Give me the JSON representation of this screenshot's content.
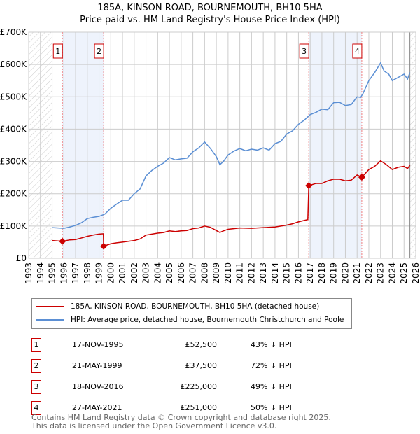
{
  "chart_data": {
    "type": "line",
    "title": "185A, KINSON ROAD, BOURNEMOUTH, BH10 5HA",
    "subtitle": "Price paid vs. HM Land Registry's House Price Index (HPI)",
    "xlim": [
      1993,
      2026
    ],
    "ylim": [
      0,
      700000
    ],
    "x_ticks": [
      "1993",
      "1994",
      "1995",
      "1996",
      "1997",
      "1998",
      "1999",
      "2000",
      "2001",
      "2002",
      "2003",
      "2004",
      "2005",
      "2006",
      "2007",
      "2008",
      "2009",
      "2010",
      "2011",
      "2012",
      "2013",
      "2014",
      "2015",
      "2016",
      "2017",
      "2018",
      "2019",
      "2020",
      "2021",
      "2022",
      "2023",
      "2024",
      "2025",
      "2026"
    ],
    "y_ticks": [
      {
        "v": 0,
        "label": "£0"
      },
      {
        "v": 100000,
        "label": "£100K"
      },
      {
        "v": 200000,
        "label": "£200K"
      },
      {
        "v": 300000,
        "label": "£300K"
      },
      {
        "v": 400000,
        "label": "£400K"
      },
      {
        "v": 500000,
        "label": "£500K"
      },
      {
        "v": 600000,
        "label": "£600K"
      },
      {
        "v": 700000,
        "label": "£700K"
      }
    ],
    "hatched_ranges": [
      [
        1993,
        1995
      ],
      [
        2025.5,
        2026
      ]
    ],
    "shaded_ranges": [
      [
        1995.88,
        1999.39
      ],
      [
        2016.88,
        2021.4
      ]
    ],
    "series": [
      {
        "name": "185A, KINSON ROAD, BOURNEMOUTH, BH10 5HA (detached house)",
        "color": "#cc0000",
        "points": [
          [
            1995,
            55
          ],
          [
            1995.88,
            52.5
          ],
          [
            1996.5,
            57
          ],
          [
            1997,
            58
          ],
          [
            1997.5,
            63
          ],
          [
            1998,
            68
          ],
          [
            1998.5,
            72
          ],
          [
            1999,
            75
          ],
          [
            1999.37,
            76
          ],
          [
            1999.39,
            37.5
          ],
          [
            2000,
            45
          ],
          [
            2000.5,
            48
          ],
          [
            2001,
            50
          ],
          [
            2002,
            55
          ],
          [
            2002.5,
            60
          ],
          [
            2003,
            72
          ],
          [
            2004,
            78
          ],
          [
            2004.5,
            80
          ],
          [
            2005,
            85
          ],
          [
            2005.5,
            83
          ],
          [
            2006,
            85
          ],
          [
            2006.5,
            86
          ],
          [
            2007,
            92
          ],
          [
            2007.5,
            94
          ],
          [
            2008,
            100
          ],
          [
            2008.5,
            96
          ],
          [
            2009,
            86
          ],
          [
            2009.3,
            80
          ],
          [
            2009.6,
            85
          ],
          [
            2010,
            90
          ],
          [
            2011,
            94
          ],
          [
            2012,
            93
          ],
          [
            2013,
            95
          ],
          [
            2014,
            97
          ],
          [
            2015,
            103
          ],
          [
            2015.5,
            107
          ],
          [
            2016,
            113
          ],
          [
            2016.8,
            120
          ],
          [
            2016.88,
            225
          ],
          [
            2017.5,
            232
          ],
          [
            2018,
            232
          ],
          [
            2018.5,
            240
          ],
          [
            2019,
            245
          ],
          [
            2019.5,
            245
          ],
          [
            2020,
            240
          ],
          [
            2020.5,
            242
          ],
          [
            2021,
            258
          ],
          [
            2021.4,
            251
          ],
          [
            2022,
            275
          ],
          [
            2022.5,
            285
          ],
          [
            2023,
            302
          ],
          [
            2023.5,
            290
          ],
          [
            2024,
            275
          ],
          [
            2024.5,
            282
          ],
          [
            2025,
            285
          ],
          [
            2025.3,
            278
          ],
          [
            2025.5,
            288
          ]
        ]
      },
      {
        "name": "HPI: Average price, detached house, Bournemouth Christchurch and Poole",
        "color": "#5b8fd4",
        "points": [
          [
            1995,
            95
          ],
          [
            1996,
            93
          ],
          [
            1996.5,
            97
          ],
          [
            1997,
            102
          ],
          [
            1997.5,
            110
          ],
          [
            1998,
            123
          ],
          [
            1998.5,
            127
          ],
          [
            1999,
            130
          ],
          [
            1999.5,
            137
          ],
          [
            2000,
            155
          ],
          [
            2000.5,
            168
          ],
          [
            2001,
            180
          ],
          [
            2001.5,
            180
          ],
          [
            2002,
            200
          ],
          [
            2002.5,
            215
          ],
          [
            2003,
            255
          ],
          [
            2003.5,
            272
          ],
          [
            2004,
            285
          ],
          [
            2004.5,
            295
          ],
          [
            2005,
            312
          ],
          [
            2005.5,
            305
          ],
          [
            2006,
            308
          ],
          [
            2006.5,
            310
          ],
          [
            2007,
            330
          ],
          [
            2007.5,
            342
          ],
          [
            2008,
            360
          ],
          [
            2008.5,
            340
          ],
          [
            2009,
            315
          ],
          [
            2009.3,
            290
          ],
          [
            2009.6,
            300
          ],
          [
            2010,
            320
          ],
          [
            2010.5,
            332
          ],
          [
            2011,
            340
          ],
          [
            2011.5,
            333
          ],
          [
            2012,
            338
          ],
          [
            2012.5,
            335
          ],
          [
            2013,
            342
          ],
          [
            2013.5,
            335
          ],
          [
            2014,
            355
          ],
          [
            2014.5,
            362
          ],
          [
            2015,
            385
          ],
          [
            2015.5,
            395
          ],
          [
            2016,
            415
          ],
          [
            2016.5,
            428
          ],
          [
            2017,
            445
          ],
          [
            2017.5,
            452
          ],
          [
            2018,
            462
          ],
          [
            2018.5,
            460
          ],
          [
            2019,
            482
          ],
          [
            2019.5,
            483
          ],
          [
            2020,
            473
          ],
          [
            2020.5,
            476
          ],
          [
            2021,
            500
          ],
          [
            2021.3,
            498
          ],
          [
            2021.5,
            510
          ],
          [
            2022,
            550
          ],
          [
            2022.5,
            575
          ],
          [
            2023,
            605
          ],
          [
            2023.3,
            580
          ],
          [
            2023.7,
            570
          ],
          [
            2024,
            550
          ],
          [
            2024.5,
            560
          ],
          [
            2025,
            570
          ],
          [
            2025.3,
            555
          ],
          [
            2025.5,
            575
          ]
        ]
      }
    ],
    "y_unit_multiplier": 1000,
    "sales": [
      {
        "label": "1",
        "x": 1995.88,
        "date": "17-NOV-1995",
        "price": "£52,500",
        "value": 52500,
        "hpi": "43% ↓ HPI"
      },
      {
        "label": "2",
        "x": 1999.39,
        "date": "21-MAY-1999",
        "price": "£37,500",
        "value": 37500,
        "hpi": "72% ↓ HPI"
      },
      {
        "label": "3",
        "x": 2016.88,
        "date": "18-NOV-2016",
        "price": "£225,000",
        "value": 225000,
        "hpi": "49% ↓ HPI"
      },
      {
        "label": "4",
        "x": 2021.4,
        "date": "27-MAY-2021",
        "price": "£251,000",
        "value": 251000,
        "hpi": "50% ↓ HPI"
      }
    ]
  },
  "footer": [
    "Contains HM Land Registry data © Crown copyright and database right 2025.",
    "This data is licensed under the Open Government Licence v3.0."
  ]
}
